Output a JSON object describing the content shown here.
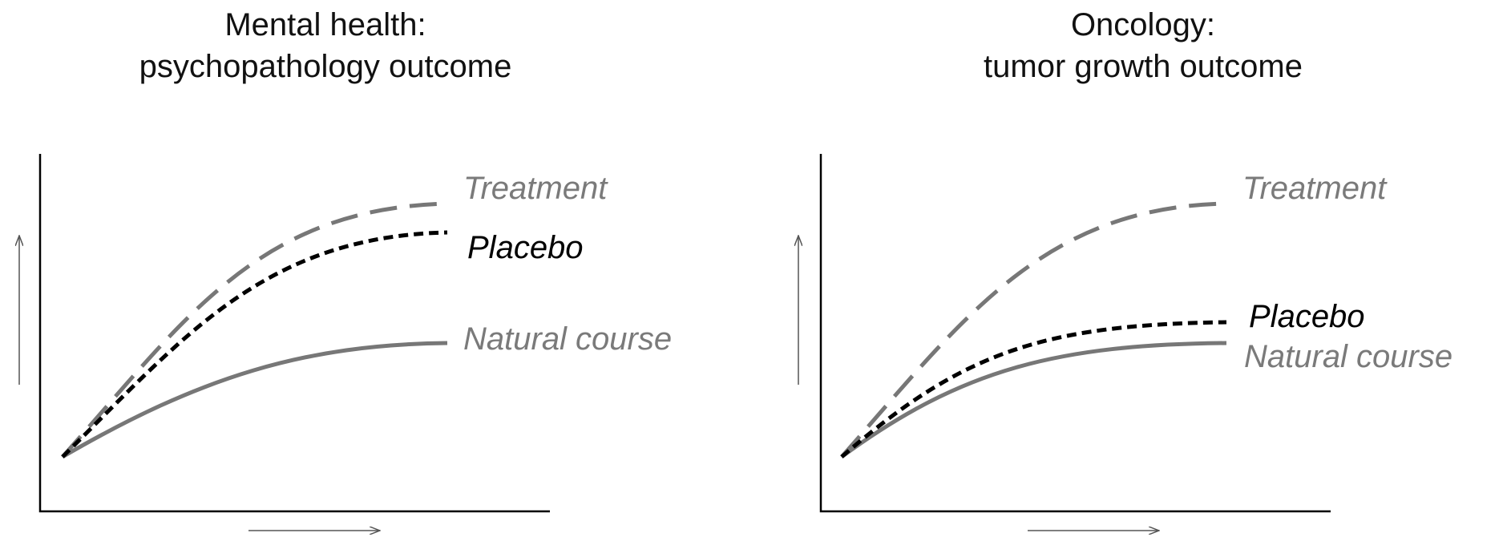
{
  "panels": [
    {
      "title": [
        "Mental health:",
        "psychopathology outcome"
      ],
      "labels": {
        "treatment": "Treatment",
        "placebo": "Placebo",
        "natural": "Natural course"
      }
    },
    {
      "title": [
        "Oncology:",
        "tumor growth outcome"
      ],
      "labels": {
        "treatment": "Treatment",
        "placebo": "Placebo",
        "natural": "Natural course"
      }
    }
  ]
}
